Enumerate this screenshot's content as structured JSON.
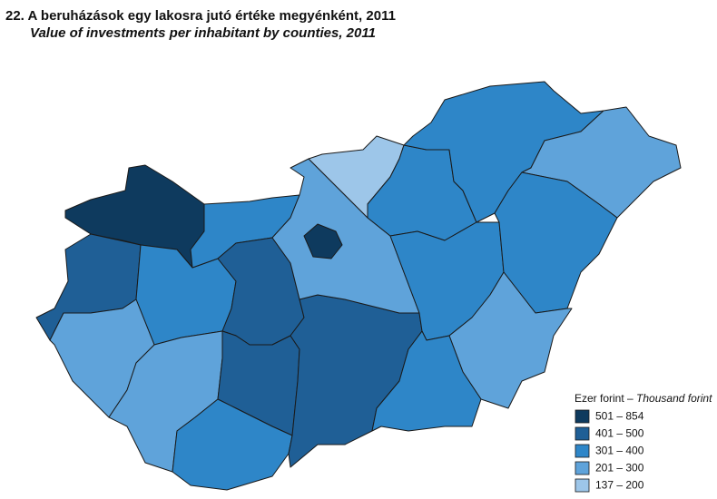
{
  "title": "22. A beruházások egy lakosra jutó értéke megyénként, 2011",
  "subtitle": "Value of investments per inhabitant by counties, 2011",
  "legend": {
    "title": "Ezer forint –",
    "title_en": "Thousand forint",
    "items": [
      {
        "label": "501 – 854",
        "color": "#0e3a5e"
      },
      {
        "label": "401 – 500",
        "color": "#1f5f96"
      },
      {
        "label": "301 – 400",
        "color": "#2e86c8"
      },
      {
        "label": "201 – 300",
        "color": "#5fa3da"
      },
      {
        "label": "137 – 200",
        "color": "#9dc6e9"
      }
    ]
  }
}
